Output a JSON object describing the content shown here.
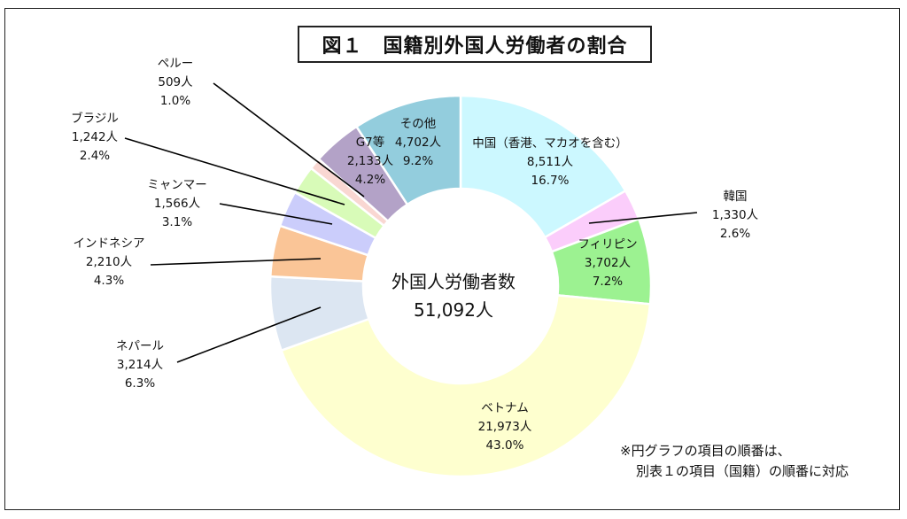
{
  "title": "図１　国籍別外国人労働者の割合",
  "center": {
    "line1": "外国人労働者数",
    "line2": "51,092人"
  },
  "note": {
    "line1": "※円グラフの項目の順番は、",
    "line2": "別表１の項目（国籍）の順番に対応"
  },
  "chart_data": {
    "type": "pie",
    "variant": "donut",
    "total": 51092,
    "start": "12 o'clock, clockwise",
    "slices": [
      {
        "name": "中国（香港、マカオを含む）",
        "value": 8511,
        "value_label": "8,511人",
        "percent_label": "16.7%",
        "color": "#ccf8ff"
      },
      {
        "name": "韓国",
        "value": 1330,
        "value_label": "1,330人",
        "percent_label": "2.6%",
        "color": "#fbcdfb"
      },
      {
        "name": "フィリピン",
        "value": 3702,
        "value_label": "3,702人",
        "percent_label": "7.2%",
        "color": "#9cf291"
      },
      {
        "name": "ベトナム",
        "value": 21973,
        "value_label": "21,973人",
        "percent_label": "43.0%",
        "color": "#feffcf"
      },
      {
        "name": "ネパール",
        "value": 3214,
        "value_label": "3,214人",
        "percent_label": "6.3%",
        "color": "#dce6f2"
      },
      {
        "name": "インドネシア",
        "value": 2210,
        "value_label": "2,210人",
        "percent_label": "4.3%",
        "color": "#fac597"
      },
      {
        "name": "ミャンマー",
        "value": 1566,
        "value_label": "1,566人",
        "percent_label": "3.1%",
        "color": "#cbcdfb"
      },
      {
        "name": "ブラジル",
        "value": 1242,
        "value_label": "1,242人",
        "percent_label": "2.4%",
        "color": "#d8fbb8"
      },
      {
        "name": "ペルー",
        "value": 509,
        "value_label": "509人",
        "percent_label": "1.0%",
        "color": "#f9d7d2"
      },
      {
        "name": "G7等",
        "value": 2133,
        "value_label": "2,133人",
        "percent_label": "4.2%",
        "color": "#b3a2c7"
      },
      {
        "name": "その他",
        "value": 4702,
        "value_label": "4,702人",
        "percent_label": "9.2%",
        "color": "#93cddd"
      }
    ]
  }
}
